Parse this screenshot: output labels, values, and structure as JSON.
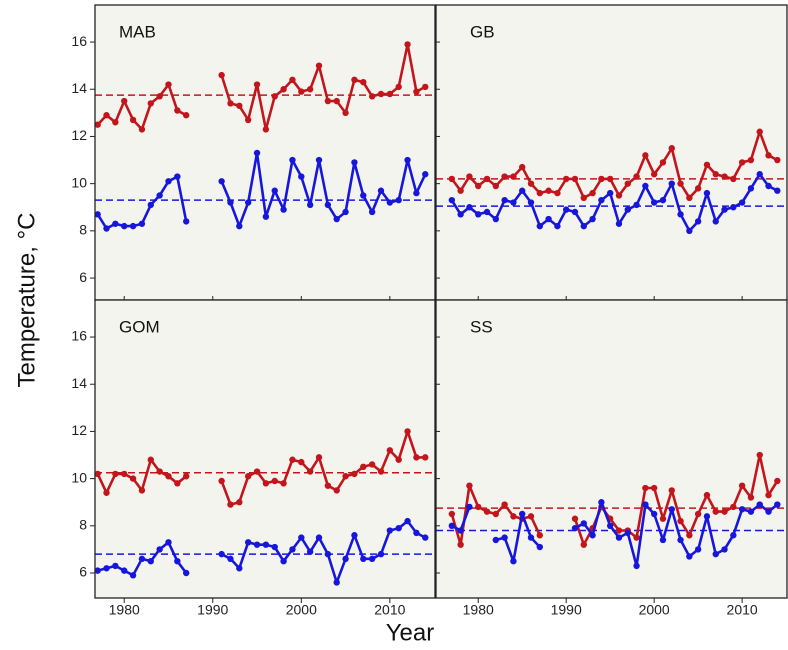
{
  "chart_data": [
    {
      "type": "line",
      "title": "MAB",
      "x": [
        1977,
        1978,
        1979,
        1980,
        1981,
        1982,
        1983,
        1984,
        1985,
        1986,
        1987,
        1988,
        1989,
        1990,
        1991,
        1992,
        1993,
        1994,
        1995,
        1996,
        1997,
        1998,
        1999,
        2000,
        2001,
        2002,
        2003,
        2004,
        2005,
        2006,
        2007,
        2008,
        2009,
        2010,
        2011,
        2012,
        2013,
        2014
      ],
      "series": [
        {
          "color": "#c3161c",
          "values": [
            12.5,
            12.9,
            12.6,
            13.5,
            12.7,
            12.3,
            13.4,
            13.7,
            14.2,
            13.1,
            12.9,
            null,
            null,
            null,
            14.6,
            13.4,
            13.3,
            12.7,
            14.2,
            12.3,
            13.7,
            14.0,
            14.4,
            13.9,
            14.0,
            15.0,
            13.5,
            13.5,
            13.0,
            14.4,
            14.3,
            13.7,
            13.8,
            13.8,
            14.1,
            15.9,
            13.9,
            14.1
          ]
        },
        {
          "color": "#1717dc",
          "values": [
            8.7,
            8.1,
            8.3,
            8.2,
            8.2,
            8.3,
            9.1,
            9.5,
            10.1,
            10.3,
            8.4,
            null,
            null,
            null,
            10.1,
            9.2,
            8.2,
            9.2,
            11.3,
            8.6,
            9.7,
            8.9,
            11.0,
            10.3,
            9.1,
            11.0,
            9.1,
            8.5,
            8.8,
            10.9,
            9.5,
            8.8,
            9.7,
            9.2,
            9.3,
            11.0,
            9.6,
            10.4
          ]
        }
      ],
      "reference_lines": [
        {
          "value": 13.75,
          "color": "#c3161c"
        },
        {
          "value": 9.3,
          "color": "#1717dc"
        }
      ],
      "xlim": [
        1976.7,
        2015.1
      ],
      "ylim": [
        5.07,
        17.57
      ],
      "xticks": [
        1980,
        1990,
        2000,
        2010
      ],
      "yticks": [
        6,
        8,
        10,
        12,
        14,
        16
      ],
      "xtick_labels": false,
      "ytick_labels": true,
      "ylabel": "Temperature, °C"
    },
    {
      "type": "line",
      "title": "GB",
      "x": [
        1977,
        1978,
        1979,
        1980,
        1981,
        1982,
        1983,
        1984,
        1985,
        1986,
        1987,
        1988,
        1989,
        1990,
        1991,
        1992,
        1993,
        1994,
        1995,
        1996,
        1997,
        1998,
        1999,
        2000,
        2001,
        2002,
        2003,
        2004,
        2005,
        2006,
        2007,
        2008,
        2009,
        2010,
        2011,
        2012,
        2013,
        2014
      ],
      "series": [
        {
          "color": "#c3161c",
          "values": [
            10.2,
            9.7,
            10.3,
            9.9,
            10.2,
            9.9,
            10.3,
            10.3,
            10.7,
            10.0,
            9.6,
            9.7,
            9.6,
            10.2,
            10.2,
            9.4,
            9.6,
            10.2,
            10.2,
            9.5,
            10.0,
            10.3,
            11.2,
            10.4,
            10.9,
            11.5,
            10.0,
            9.4,
            9.8,
            10.8,
            10.4,
            10.3,
            10.2,
            10.9,
            11.0,
            12.2,
            11.2,
            11.0
          ]
        },
        {
          "color": "#1717dc",
          "values": [
            9.3,
            8.7,
            9.0,
            8.7,
            8.8,
            8.5,
            9.3,
            9.2,
            9.7,
            9.2,
            8.2,
            8.5,
            8.2,
            8.9,
            8.8,
            8.2,
            8.5,
            9.3,
            9.6,
            8.3,
            8.9,
            9.1,
            9.9,
            9.2,
            9.3,
            10.0,
            8.7,
            8.0,
            8.4,
            9.6,
            8.4,
            8.9,
            9.0,
            9.2,
            9.8,
            10.4,
            9.9,
            9.7
          ]
        }
      ],
      "reference_lines": [
        {
          "value": 10.2,
          "color": "#c3161c"
        },
        {
          "value": 9.05,
          "color": "#1717dc"
        }
      ],
      "xlim": [
        1975.2,
        2015.1
      ],
      "ylim": [
        5.07,
        17.57
      ],
      "xticks": [
        1980,
        1990,
        2000,
        2010
      ],
      "yticks": [
        6,
        8,
        10,
        12,
        14,
        16
      ],
      "xtick_labels": false,
      "ytick_labels": false
    },
    {
      "type": "line",
      "title": "GOM",
      "x": [
        1977,
        1978,
        1979,
        1980,
        1981,
        1982,
        1983,
        1984,
        1985,
        1986,
        1987,
        1988,
        1989,
        1990,
        1991,
        1992,
        1993,
        1994,
        1995,
        1996,
        1997,
        1998,
        1999,
        2000,
        2001,
        2002,
        2003,
        2004,
        2005,
        2006,
        2007,
        2008,
        2009,
        2010,
        2011,
        2012,
        2013,
        2014
      ],
      "series": [
        {
          "color": "#c3161c",
          "values": [
            10.2,
            9.4,
            10.2,
            10.2,
            10.0,
            9.5,
            10.8,
            10.3,
            10.1,
            9.8,
            10.1,
            null,
            null,
            null,
            9.9,
            8.9,
            9.0,
            10.1,
            10.3,
            9.8,
            9.9,
            9.8,
            10.8,
            10.7,
            10.3,
            10.9,
            9.7,
            9.5,
            10.1,
            10.2,
            10.5,
            10.6,
            10.3,
            11.2,
            10.8,
            12.0,
            10.9,
            10.9
          ]
        },
        {
          "color": "#1717dc",
          "values": [
            6.1,
            6.2,
            6.3,
            6.1,
            5.9,
            6.6,
            6.5,
            7.0,
            7.3,
            6.5,
            6.0,
            null,
            null,
            null,
            6.8,
            6.6,
            6.2,
            7.3,
            7.2,
            7.2,
            7.1,
            6.5,
            7.0,
            7.5,
            6.9,
            7.5,
            6.8,
            5.6,
            6.6,
            7.6,
            6.6,
            6.6,
            6.8,
            7.8,
            7.9,
            8.2,
            7.7,
            7.5
          ]
        }
      ],
      "reference_lines": [
        {
          "value": 10.25,
          "color": "#c3161c"
        },
        {
          "value": 6.8,
          "color": "#1717dc"
        }
      ],
      "xlim": [
        1976.7,
        2015.1
      ],
      "ylim": [
        4.94,
        17.57
      ],
      "xticks": [
        1980,
        1990,
        2000,
        2010
      ],
      "yticks": [
        6,
        8,
        10,
        12,
        14,
        16
      ],
      "xtick_labels": true,
      "ytick_labels": true,
      "xlabel": "Year"
    },
    {
      "type": "line",
      "title": "SS",
      "x": [
        1977,
        1978,
        1979,
        1980,
        1981,
        1982,
        1983,
        1984,
        1985,
        1986,
        1987,
        1988,
        1989,
        1990,
        1991,
        1992,
        1993,
        1994,
        1995,
        1996,
        1997,
        1998,
        1999,
        2000,
        2001,
        2002,
        2003,
        2004,
        2005,
        2006,
        2007,
        2008,
        2009,
        2010,
        2011,
        2012,
        2013,
        2014
      ],
      "series": [
        {
          "color": "#c3161c",
          "values": [
            8.5,
            7.2,
            9.7,
            8.8,
            8.6,
            8.5,
            8.9,
            8.4,
            8.3,
            8.4,
            7.6,
            null,
            null,
            null,
            8.3,
            7.2,
            7.9,
            8.8,
            8.3,
            7.8,
            7.8,
            7.5,
            9.6,
            9.6,
            8.3,
            9.5,
            8.2,
            7.6,
            8.5,
            9.3,
            8.6,
            8.6,
            8.8,
            9.7,
            9.2,
            11.0,
            9.3,
            9.9
          ]
        },
        {
          "color": "#1717dc",
          "values": [
            8.0,
            7.8,
            8.8,
            null,
            null,
            7.4,
            7.5,
            6.5,
            8.5,
            7.5,
            7.1,
            null,
            null,
            null,
            7.9,
            8.1,
            7.6,
            9.0,
            8.0,
            7.5,
            7.7,
            6.3,
            8.9,
            8.5,
            7.4,
            8.7,
            7.4,
            6.7,
            7.0,
            8.4,
            6.8,
            7.0,
            7.6,
            8.7,
            8.6,
            8.9,
            8.6,
            8.9
          ]
        }
      ],
      "reference_lines": [
        {
          "value": 8.75,
          "color": "#c3161c"
        },
        {
          "value": 7.8,
          "color": "#1717dc"
        }
      ],
      "xlim": [
        1975.2,
        2015.1
      ],
      "ylim": [
        4.94,
        17.57
      ],
      "xticks": [
        1980,
        1990,
        2000,
        2010
      ],
      "yticks": [
        6,
        8,
        10,
        12,
        14,
        16
      ],
      "xtick_labels": true,
      "ytick_labels": false
    }
  ]
}
